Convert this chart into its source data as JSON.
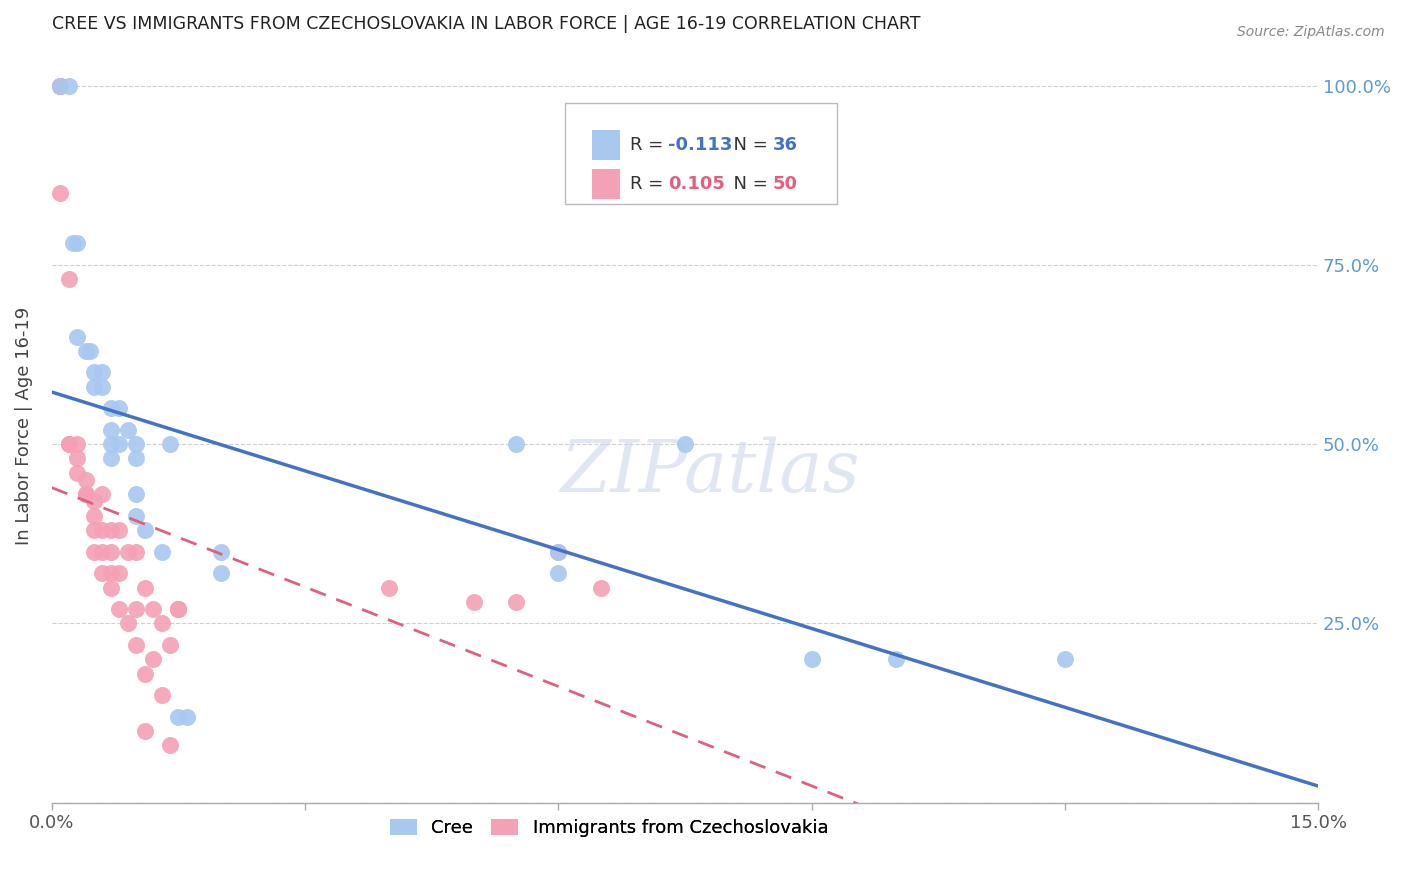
{
  "title": "CREE VS IMMIGRANTS FROM CZECHOSLOVAKIA IN LABOR FORCE | AGE 16-19 CORRELATION CHART",
  "source": "Source: ZipAtlas.com",
  "ylabel": "In Labor Force | Age 16-19",
  "xlim": [
    0.0,
    0.15
  ],
  "ylim": [
    0.0,
    1.05
  ],
  "cree_color": "#a8c8f0",
  "immigrants_color": "#f4a0b5",
  "cree_R": -0.113,
  "cree_N": 36,
  "immigrants_R": 0.105,
  "immigrants_N": 50,
  "cree_line_color": "#4472c4",
  "immigrants_line_color": "#e06080",
  "grid_color": "#d0d0d0",
  "right_axis_color": "#5b9bd5",
  "watermark": "ZIPatlas",
  "cree_scatter": [
    [
      0.001,
      1.0
    ],
    [
      0.002,
      1.0
    ],
    [
      0.0025,
      0.78
    ],
    [
      0.003,
      0.78
    ],
    [
      0.003,
      0.65
    ],
    [
      0.004,
      0.63
    ],
    [
      0.0045,
      0.63
    ],
    [
      0.005,
      0.6
    ],
    [
      0.005,
      0.58
    ],
    [
      0.006,
      0.6
    ],
    [
      0.006,
      0.58
    ],
    [
      0.007,
      0.55
    ],
    [
      0.007,
      0.52
    ],
    [
      0.007,
      0.5
    ],
    [
      0.007,
      0.48
    ],
    [
      0.008,
      0.55
    ],
    [
      0.008,
      0.5
    ],
    [
      0.009,
      0.52
    ],
    [
      0.01,
      0.5
    ],
    [
      0.01,
      0.48
    ],
    [
      0.01,
      0.43
    ],
    [
      0.01,
      0.4
    ],
    [
      0.011,
      0.38
    ],
    [
      0.013,
      0.35
    ],
    [
      0.014,
      0.5
    ],
    [
      0.015,
      0.12
    ],
    [
      0.016,
      0.12
    ],
    [
      0.02,
      0.35
    ],
    [
      0.02,
      0.32
    ],
    [
      0.055,
      0.5
    ],
    [
      0.06,
      0.35
    ],
    [
      0.06,
      0.32
    ],
    [
      0.075,
      0.5
    ],
    [
      0.09,
      0.2
    ],
    [
      0.1,
      0.2
    ],
    [
      0.12,
      0.2
    ]
  ],
  "immigrants_scatter": [
    [
      0.001,
      1.0
    ],
    [
      0.001,
      1.0
    ],
    [
      0.001,
      1.0
    ],
    [
      0.001,
      0.85
    ],
    [
      0.002,
      0.73
    ],
    [
      0.002,
      0.5
    ],
    [
      0.002,
      0.5
    ],
    [
      0.003,
      0.5
    ],
    [
      0.003,
      0.48
    ],
    [
      0.003,
      0.46
    ],
    [
      0.004,
      0.45
    ],
    [
      0.004,
      0.43
    ],
    [
      0.004,
      0.43
    ],
    [
      0.005,
      0.42
    ],
    [
      0.005,
      0.4
    ],
    [
      0.005,
      0.38
    ],
    [
      0.005,
      0.35
    ],
    [
      0.006,
      0.43
    ],
    [
      0.006,
      0.38
    ],
    [
      0.006,
      0.35
    ],
    [
      0.006,
      0.32
    ],
    [
      0.007,
      0.38
    ],
    [
      0.007,
      0.35
    ],
    [
      0.007,
      0.32
    ],
    [
      0.007,
      0.3
    ],
    [
      0.008,
      0.38
    ],
    [
      0.008,
      0.32
    ],
    [
      0.008,
      0.27
    ],
    [
      0.009,
      0.35
    ],
    [
      0.009,
      0.25
    ],
    [
      0.01,
      0.35
    ],
    [
      0.01,
      0.27
    ],
    [
      0.01,
      0.22
    ],
    [
      0.011,
      0.3
    ],
    [
      0.011,
      0.18
    ],
    [
      0.011,
      0.1
    ],
    [
      0.012,
      0.27
    ],
    [
      0.012,
      0.2
    ],
    [
      0.013,
      0.25
    ],
    [
      0.013,
      0.15
    ],
    [
      0.014,
      0.22
    ],
    [
      0.014,
      0.08
    ],
    [
      0.015,
      0.27
    ],
    [
      0.015,
      0.27
    ],
    [
      0.015,
      0.27
    ],
    [
      0.04,
      0.3
    ],
    [
      0.05,
      0.28
    ],
    [
      0.055,
      0.28
    ],
    [
      0.065,
      0.3
    ],
    [
      0.06,
      0.35
    ]
  ]
}
